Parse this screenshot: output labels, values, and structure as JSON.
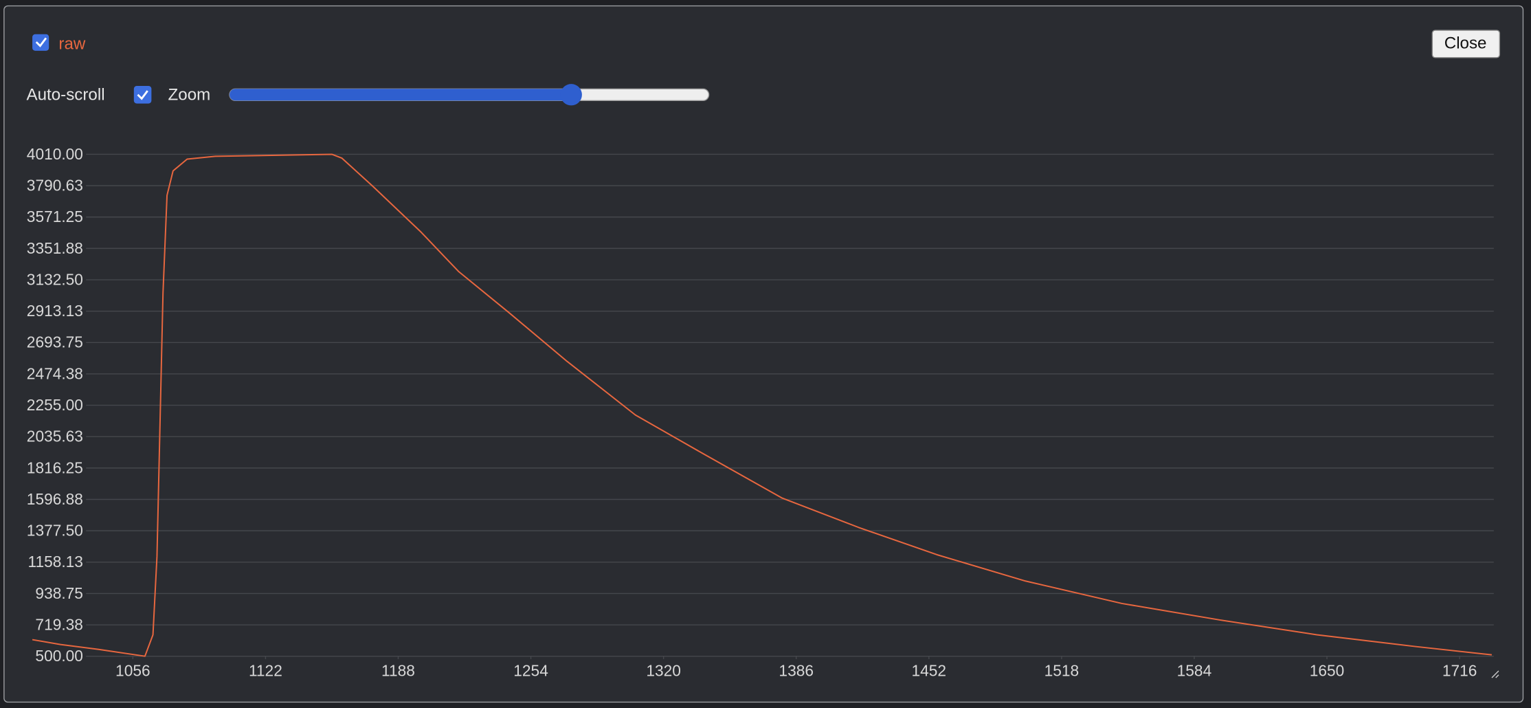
{
  "controls": {
    "auto_scroll": "Auto-scroll",
    "zoom": "Zoom",
    "close": "Close"
  },
  "chart_data": {
    "type": "line",
    "x": [
      1006,
      1020,
      1039,
      1062,
      1066,
      1068,
      1071,
      1073,
      1076,
      1083,
      1097,
      1155,
      1160,
      1175,
      1199,
      1218,
      1243,
      1272,
      1306,
      1340,
      1379,
      1417,
      1456,
      1500,
      1548,
      1597,
      1645,
      1694,
      1732
    ],
    "series": [
      {
        "name": "raw",
        "color": "#e8673f",
        "values": [
          616,
          582,
          548,
          500,
          650,
          1197,
          3040,
          3723,
          3894,
          3976,
          3996,
          4010,
          3983,
          3791,
          3471,
          3191,
          2904,
          2562,
          2187,
          1914,
          1606,
          1401,
          1210,
          1026,
          869,
          753,
          650,
          568,
          510
        ]
      }
    ],
    "xlim": [
      1006,
      1733
    ],
    "ylim": [
      500,
      4010
    ],
    "xticks": [
      1056,
      1122,
      1188,
      1254,
      1320,
      1386,
      1452,
      1518,
      1584,
      1650,
      1716
    ],
    "yticks": [
      {
        "value": 500,
        "label": "500.00"
      },
      {
        "value": 719.38,
        "label": "719.38"
      },
      {
        "value": 938.75,
        "label": "938.75"
      },
      {
        "value": 1158.13,
        "label": "1158.13"
      },
      {
        "value": 1377.5,
        "label": "1377.50"
      },
      {
        "value": 1596.88,
        "label": "1596.88"
      },
      {
        "value": 1816.25,
        "label": "1816.25"
      },
      {
        "value": 2035.63,
        "label": "2035.63"
      },
      {
        "value": 2255,
        "label": "2255.00"
      },
      {
        "value": 2474.38,
        "label": "2474.38"
      },
      {
        "value": 2693.75,
        "label": "2693.75"
      },
      {
        "value": 2913.13,
        "label": "2913.13"
      },
      {
        "value": 3132.5,
        "label": "3132.50"
      },
      {
        "value": 3351.88,
        "label": "3351.88"
      },
      {
        "value": 3571.25,
        "label": "3571.25"
      },
      {
        "value": 3790.63,
        "label": "3790.63"
      },
      {
        "value": 4010,
        "label": "4010.00"
      }
    ],
    "grid": true
  }
}
